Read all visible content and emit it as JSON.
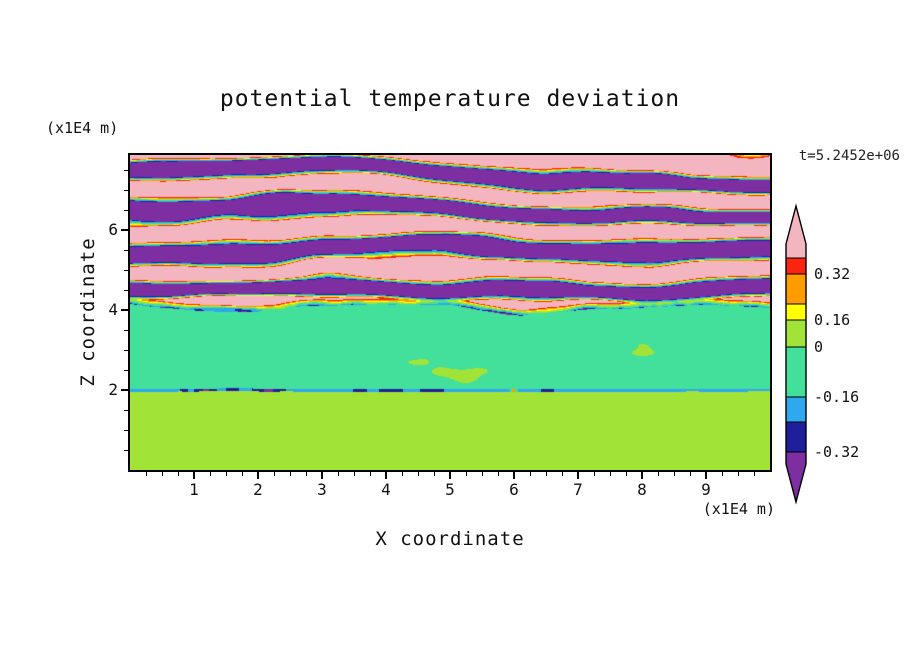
{
  "chart_data": {
    "type": "heatmap",
    "title": "potential temperature deviation",
    "xlabel": "X coordinate",
    "ylabel": "Z coordinate",
    "x_unit_label": "(x1E4 m)",
    "z_unit_label": "(x1E4 m)",
    "time_annotation": "t=5.2452e+06",
    "x_range": [
      0,
      10
    ],
    "z_range": [
      0,
      7.875
    ],
    "x_ticks": [
      "1",
      "2",
      "3",
      "4",
      "5",
      "6",
      "7",
      "8",
      "9"
    ],
    "z_ticks": [
      "2",
      "4",
      "6"
    ],
    "x_minor_tick_step": 0.25,
    "z_minor_tick_step": 0.5,
    "colorbar": {
      "tick_labels": [
        "0.32",
        "0.16",
        "0",
        "-0.16",
        "-0.32"
      ],
      "levels": [
        0.4,
        0.32,
        0.24,
        0.16,
        0,
        -0.16,
        -0.32,
        -0.4
      ],
      "colors": [
        "#f3b5bf",
        "#fb2410",
        "#ff9c00",
        "#ffff00",
        "#a2e338",
        "#42e09a",
        "#2fa8f0",
        "#1f1f9e",
        "#7d2ea0"
      ],
      "color_names": [
        "pink",
        "red",
        "orange",
        "yellow",
        "yellow-green",
        "spring-green",
        "cyan-blue",
        "dark-blue",
        "purple"
      ],
      "orientation": "vertical-with-arrow-ends"
    },
    "field_regions": [
      {
        "z_range": [
          4.0,
          7.875
        ],
        "description": "stratified alternating horizontal bands of strong positive (pink, > 0.4) and strong negative (purple, < -0.4) deviation with thin red/orange/yellow and cyan/blue mixing filaments at band interfaces"
      },
      {
        "z_range": [
          2.0,
          4.0
        ],
        "description": "weak near-zero deviation, mostly -0.16 to 0 (spring green) with 0 to 0.16 (yellow-green) horizontal streaks; thin cyan/blue line along wavy upper boundary near z = 4"
      },
      {
        "z_range": [
          1.95,
          2.05
        ],
        "description": "sharp thin interface line of strong negative deviation (dark blue/purple) with isolated positive orange/red spots"
      },
      {
        "z_range": [
          0,
          2.0
        ],
        "description": "weak positive deviation 0 to 0.16 (yellow-green) with near-zero (spring green) convective plume and swirl shapes"
      }
    ]
  }
}
